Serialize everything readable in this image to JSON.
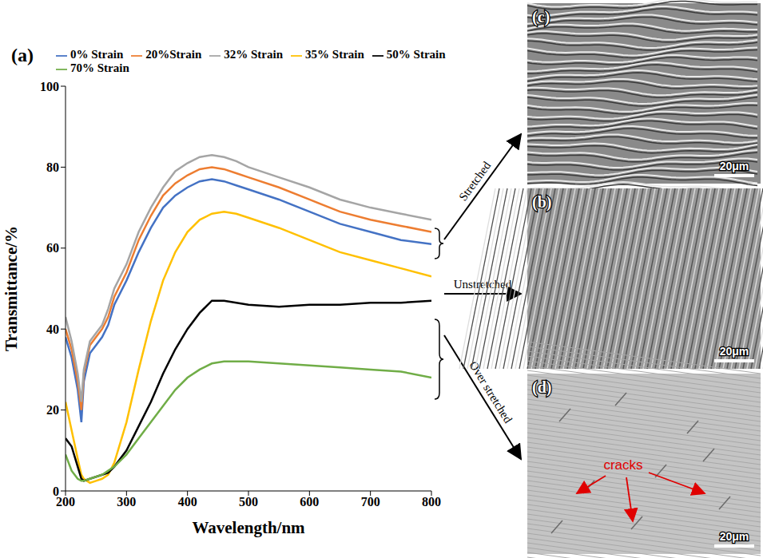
{
  "chart_data": {
    "type": "line",
    "title": "(a)",
    "x_label": "Wavelength/nm",
    "y_label": "Transmittance/%",
    "x": [
      200,
      210,
      220,
      226,
      230,
      240,
      250,
      260,
      270,
      280,
      300,
      320,
      340,
      360,
      380,
      400,
      420,
      440,
      460,
      480,
      500,
      550,
      600,
      650,
      700,
      750,
      800
    ],
    "series": [
      {
        "name": "0% Strain",
        "color": "#4472c4",
        "values": [
          38,
          33,
          25,
          17,
          27,
          34,
          36,
          38,
          41,
          46,
          52,
          59,
          65,
          70,
          73,
          75,
          76.5,
          77,
          76.5,
          75.5,
          74.5,
          72,
          69,
          66,
          64,
          62,
          61
        ]
      },
      {
        "name": "20%Strain",
        "color": "#ed7d31",
        "values": [
          40,
          35,
          27,
          20,
          29,
          36,
          38,
          40,
          43,
          48,
          54,
          62,
          68,
          73,
          76,
          78,
          79.5,
          80,
          79.5,
          78.5,
          77.5,
          75,
          72,
          69,
          67,
          65.5,
          64
        ]
      },
      {
        "name": "32% Strain",
        "color": "#a5a5a5",
        "values": [
          43,
          37,
          29,
          22,
          30,
          37,
          39,
          41,
          45,
          50,
          56,
          64,
          70,
          75,
          79,
          81,
          82.5,
          83,
          82.5,
          81.5,
          80,
          77.5,
          75,
          72,
          70,
          68.5,
          67
        ]
      },
      {
        "name": "35% Strain",
        "color": "#ffc000",
        "values": [
          22,
          15,
          8,
          4,
          3,
          2,
          2.5,
          3,
          4,
          7,
          17,
          30,
          42,
          52,
          59,
          64,
          67,
          68.5,
          69,
          68.5,
          67.5,
          65,
          62,
          59,
          57,
          55,
          53
        ]
      },
      {
        "name": "50% Strain",
        "color": "#000000",
        "values": [
          13,
          11,
          6,
          3,
          2.5,
          3,
          3.5,
          4,
          4.5,
          6,
          10,
          16,
          22,
          29,
          35,
          40,
          44,
          47,
          47,
          46.5,
          46,
          45.5,
          46,
          46,
          46.5,
          46.5,
          47
        ]
      },
      {
        "name": "70% Strain",
        "color": "#70ad47",
        "values": [
          9,
          5,
          3,
          2.5,
          2.5,
          3,
          3.5,
          4,
          5,
          6,
          9,
          13,
          17,
          21,
          25,
          28,
          30,
          31.5,
          32,
          32,
          32,
          31.5,
          31,
          30.5,
          30,
          29.5,
          28
        ]
      }
    ],
    "xlim": [
      200,
      800
    ],
    "xticks": [
      200,
      300,
      400,
      500,
      600,
      700,
      800
    ],
    "ylim": [
      0,
      100
    ],
    "yticks": [
      0,
      20,
      40,
      60,
      80,
      100
    ],
    "grid": false,
    "legend": "top"
  },
  "panels": [
    {
      "label": "(c)",
      "arrow_label": "Stretched",
      "scale_bar": "20μm"
    },
    {
      "label": "(b)",
      "arrow_label": "Unstretched",
      "scale_bar": "20μm"
    },
    {
      "label": "(d)",
      "arrow_label": "Over stretched",
      "scale_bar": "20μm",
      "annotation": "cracks"
    }
  ]
}
